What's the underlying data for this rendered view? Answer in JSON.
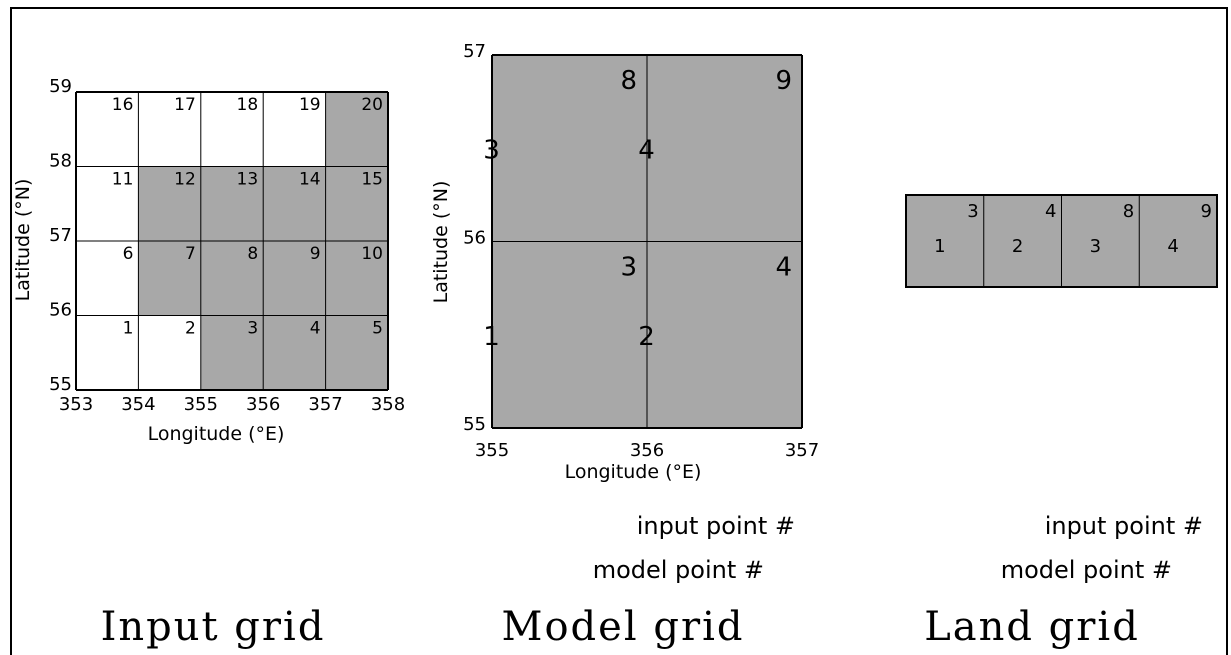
{
  "colors": {
    "land": "#a8a8a8",
    "sea": "#ffffff",
    "line": "#000000"
  },
  "input_grid": {
    "title": "Input grid",
    "xlabel": "Longitude (°E)",
    "ylabel": "Latitude (°N)",
    "x_ticks": [
      "353",
      "354",
      "355",
      "356",
      "357",
      "358"
    ],
    "y_ticks": [
      "55",
      "56",
      "57",
      "58",
      "59"
    ],
    "xlim": [
      353,
      358
    ],
    "ylim": [
      55,
      59
    ],
    "cells": [
      {
        "label": "1",
        "lon": 353,
        "lat": 55,
        "land": false
      },
      {
        "label": "2",
        "lon": 354,
        "lat": 55,
        "land": false
      },
      {
        "label": "3",
        "lon": 355,
        "lat": 55,
        "land": true
      },
      {
        "label": "4",
        "lon": 356,
        "lat": 55,
        "land": true
      },
      {
        "label": "5",
        "lon": 357,
        "lat": 55,
        "land": true
      },
      {
        "label": "6",
        "lon": 353,
        "lat": 56,
        "land": false
      },
      {
        "label": "7",
        "lon": 354,
        "lat": 56,
        "land": true
      },
      {
        "label": "8",
        "lon": 355,
        "lat": 56,
        "land": true
      },
      {
        "label": "9",
        "lon": 356,
        "lat": 56,
        "land": true
      },
      {
        "label": "10",
        "lon": 357,
        "lat": 56,
        "land": true
      },
      {
        "label": "11",
        "lon": 353,
        "lat": 57,
        "land": false
      },
      {
        "label": "12",
        "lon": 354,
        "lat": 57,
        "land": true
      },
      {
        "label": "13",
        "lon": 355,
        "lat": 57,
        "land": true
      },
      {
        "label": "14",
        "lon": 356,
        "lat": 57,
        "land": true
      },
      {
        "label": "15",
        "lon": 357,
        "lat": 57,
        "land": true
      },
      {
        "label": "16",
        "lon": 353,
        "lat": 58,
        "land": false
      },
      {
        "label": "17",
        "lon": 354,
        "lat": 58,
        "land": false
      },
      {
        "label": "18",
        "lon": 355,
        "lat": 58,
        "land": false
      },
      {
        "label": "19",
        "lon": 356,
        "lat": 58,
        "land": false
      },
      {
        "label": "20",
        "lon": 357,
        "lat": 58,
        "land": true
      }
    ]
  },
  "model_grid": {
    "title": "Model grid",
    "xlabel": "Longitude (°E)",
    "ylabel": "Latitude (°N)",
    "x_ticks": [
      "355",
      "356",
      "357"
    ],
    "y_ticks": [
      "55",
      "56",
      "57"
    ],
    "xlim": [
      355,
      357
    ],
    "ylim": [
      55,
      57
    ],
    "cells": [
      {
        "model": "1",
        "input": "3",
        "lon": 355,
        "lat": 55
      },
      {
        "model": "2",
        "input": "4",
        "lon": 356,
        "lat": 55
      },
      {
        "model": "3",
        "input": "8",
        "lon": 355,
        "lat": 56
      },
      {
        "model": "4",
        "input": "9",
        "lon": 356,
        "lat": 56
      }
    ],
    "legend_input": "input point #",
    "legend_model": "model point #"
  },
  "land_grid": {
    "title": "Land grid",
    "cells": [
      {
        "model": "1",
        "input": "3"
      },
      {
        "model": "2",
        "input": "4"
      },
      {
        "model": "3",
        "input": "8"
      },
      {
        "model": "4",
        "input": "9"
      }
    ],
    "legend_input": "input point #",
    "legend_model": "model point #"
  }
}
